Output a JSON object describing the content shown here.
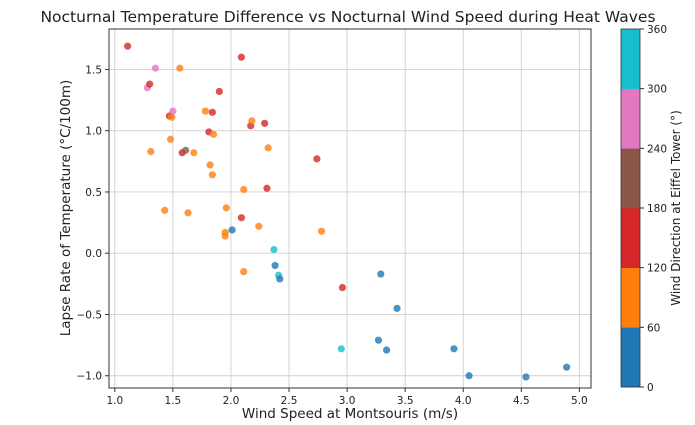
{
  "chart_data": {
    "type": "scatter",
    "title": "Nocturnal Temperature Difference vs Nocturnal Wind Speed during Heat Waves",
    "xlabel": "Wind Speed at Montsouris (m/s)",
    "ylabel": "Lapse Rate of Temperature (°C/100m)",
    "xlim": [
      0.95,
      5.1
    ],
    "ylim": [
      -1.1,
      1.83
    ],
    "xticks": [
      "1.0",
      "1.5",
      "2.0",
      "2.5",
      "3.0",
      "3.5",
      "4.0",
      "4.5",
      "5.0"
    ],
    "yticks": [
      "1.5",
      "1.0",
      "0.5",
      "0.0",
      "−0.5",
      "−1.0"
    ],
    "grid": true,
    "colorbar": {
      "label": "Wind Direction at Eiffel Tower (°)",
      "range": [
        0,
        360
      ],
      "ticks": [
        "0",
        "60",
        "120",
        "180",
        "240",
        "300",
        "360"
      ],
      "colors": [
        "#1f77b4",
        "#ff7f0e",
        "#d62728",
        "#8c564b",
        "#e377c2",
        "#17becf"
      ]
    },
    "points": [
      {
        "x": 1.11,
        "y": 1.69,
        "c": 2
      },
      {
        "x": 1.28,
        "y": 1.35,
        "c": 4
      },
      {
        "x": 1.3,
        "y": 1.38,
        "c": 2
      },
      {
        "x": 1.35,
        "y": 1.51,
        "c": 4
      },
      {
        "x": 1.31,
        "y": 0.83,
        "c": 1
      },
      {
        "x": 1.47,
        "y": 1.12,
        "c": 2
      },
      {
        "x": 1.49,
        "y": 1.11,
        "c": 1
      },
      {
        "x": 1.5,
        "y": 1.16,
        "c": 4
      },
      {
        "x": 1.48,
        "y": 0.93,
        "c": 1
      },
      {
        "x": 1.43,
        "y": 0.35,
        "c": 1
      },
      {
        "x": 1.56,
        "y": 1.51,
        "c": 1
      },
      {
        "x": 1.58,
        "y": 0.82,
        "c": 2
      },
      {
        "x": 1.61,
        "y": 0.84,
        "c": 3
      },
      {
        "x": 1.68,
        "y": 0.82,
        "c": 1
      },
      {
        "x": 1.63,
        "y": 0.33,
        "c": 1
      },
      {
        "x": 1.78,
        "y": 1.16,
        "c": 1
      },
      {
        "x": 1.81,
        "y": 0.99,
        "c": 2
      },
      {
        "x": 1.84,
        "y": 1.15,
        "c": 2
      },
      {
        "x": 1.85,
        "y": 0.97,
        "c": 1
      },
      {
        "x": 1.82,
        "y": 0.72,
        "c": 1
      },
      {
        "x": 1.84,
        "y": 0.64,
        "c": 1
      },
      {
        "x": 1.9,
        "y": 1.32,
        "c": 2
      },
      {
        "x": 1.96,
        "y": 0.37,
        "c": 1
      },
      {
        "x": 1.95,
        "y": 0.17,
        "c": 1
      },
      {
        "x": 1.95,
        "y": 0.14,
        "c": 1
      },
      {
        "x": 2.01,
        "y": 0.19,
        "c": 0
      },
      {
        "x": 2.09,
        "y": 1.6,
        "c": 2
      },
      {
        "x": 2.09,
        "y": 0.29,
        "c": 2
      },
      {
        "x": 2.11,
        "y": 0.52,
        "c": 1
      },
      {
        "x": 2.11,
        "y": -0.15,
        "c": 1
      },
      {
        "x": 2.17,
        "y": 1.04,
        "c": 2
      },
      {
        "x": 2.18,
        "y": 1.08,
        "c": 1
      },
      {
        "x": 2.24,
        "y": 0.22,
        "c": 1
      },
      {
        "x": 2.29,
        "y": 1.06,
        "c": 2
      },
      {
        "x": 2.32,
        "y": 0.86,
        "c": 1
      },
      {
        "x": 2.31,
        "y": 0.53,
        "c": 2
      },
      {
        "x": 2.37,
        "y": 0.03,
        "c": 5
      },
      {
        "x": 2.38,
        "y": -0.1,
        "c": 0
      },
      {
        "x": 2.41,
        "y": -0.18,
        "c": 5
      },
      {
        "x": 2.42,
        "y": -0.21,
        "c": 0
      },
      {
        "x": 2.74,
        "y": 0.77,
        "c": 2
      },
      {
        "x": 2.78,
        "y": 0.18,
        "c": 1
      },
      {
        "x": 2.95,
        "y": -0.78,
        "c": 5
      },
      {
        "x": 2.96,
        "y": -0.28,
        "c": 2
      },
      {
        "x": 3.27,
        "y": -0.71,
        "c": 0
      },
      {
        "x": 3.29,
        "y": -0.17,
        "c": 0
      },
      {
        "x": 3.34,
        "y": -0.79,
        "c": 0
      },
      {
        "x": 3.43,
        "y": -0.45,
        "c": 0
      },
      {
        "x": 3.92,
        "y": -0.78,
        "c": 0
      },
      {
        "x": 4.05,
        "y": -1.0,
        "c": 0
      },
      {
        "x": 4.54,
        "y": -1.01,
        "c": 0
      },
      {
        "x": 4.89,
        "y": -0.93,
        "c": 0
      }
    ]
  }
}
